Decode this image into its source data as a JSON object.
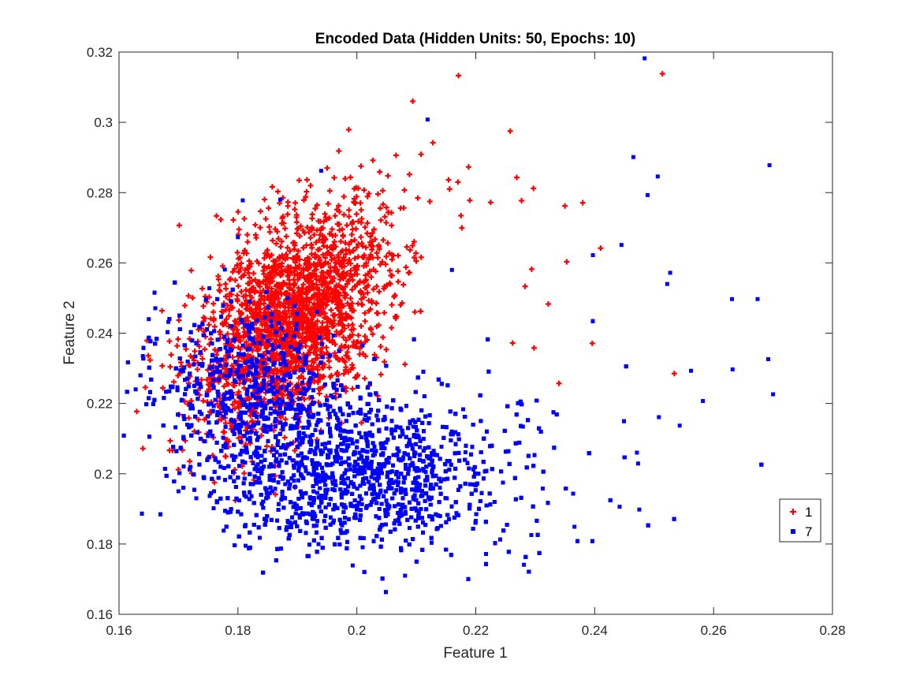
{
  "chart_data": {
    "type": "scatter",
    "title": "Encoded Data (Hidden Units: 50, Epochs: 10)",
    "xlabel": "Feature 1",
    "ylabel": "Feature 2",
    "xlim": [
      0.16,
      0.28
    ],
    "ylim": [
      0.16,
      0.32
    ],
    "xticks": [
      "0.16",
      "0.18",
      "0.2",
      "0.22",
      "0.24",
      "0.26",
      "0.28"
    ],
    "yticks": [
      "0.16",
      "0.18",
      "0.2",
      "0.22",
      "0.24",
      "0.26",
      "0.28",
      "0.3",
      "0.32"
    ],
    "grid": false,
    "legend_position": "lower-right",
    "series": [
      {
        "name": "1",
        "marker": "plus",
        "color": "#ff0000",
        "cluster_center": [
          0.189,
          0.243
        ],
        "cluster_spread": [
          0.008,
          0.014
        ],
        "point_count": 2200,
        "points": [
          [
            0.2171,
            0.3133
          ],
          [
            0.2514,
            0.3138
          ],
          [
            0.2094,
            0.306
          ],
          [
            0.2258,
            0.2975
          ],
          [
            0.2128,
            0.2942
          ],
          [
            0.2108,
            0.2909
          ],
          [
            0.2066,
            0.2906
          ],
          [
            0.2027,
            0.2892
          ],
          [
            0.2188,
            0.2873
          ],
          [
            0.195,
            0.287
          ],
          [
            0.217,
            0.283
          ],
          [
            0.1903,
            0.2835
          ],
          [
            0.2269,
            0.2843
          ],
          [
            0.2297,
            0.2812
          ],
          [
            0.2156,
            0.281
          ],
          [
            0.208,
            0.2807
          ],
          [
            0.219,
            0.2778
          ],
          [
            0.2225,
            0.2772
          ],
          [
            0.2277,
            0.2777
          ],
          [
            0.238,
            0.2771
          ],
          [
            0.235,
            0.2762
          ],
          [
            0.187,
            0.277
          ],
          [
            0.241,
            0.2642
          ],
          [
            0.2353,
            0.2603
          ],
          [
            0.2294,
            0.2582
          ],
          [
            0.2283,
            0.2533
          ],
          [
            0.2396,
            0.2371
          ],
          [
            0.2534,
            0.2285
          ],
          [
            0.234,
            0.2257
          ],
          [
            0.2298,
            0.2358
          ],
          [
            0.2262,
            0.2372
          ],
          [
            0.2322,
            0.2483
          ]
        ]
      },
      {
        "name": "7",
        "marker": "square",
        "color": "#0000ff",
        "cluster_center": [
          0.196,
          0.205
        ],
        "cluster_spread": [
          0.012,
          0.012
        ],
        "point_count": 5500,
        "points": [
          [
            0.2484,
            0.3182
          ],
          [
            0.2119,
            0.3008
          ],
          [
            0.2694,
            0.2878
          ],
          [
            0.2465,
            0.2901
          ],
          [
            0.2506,
            0.2846
          ],
          [
            0.2489,
            0.2793
          ],
          [
            0.2527,
            0.2572
          ],
          [
            0.2522,
            0.254
          ],
          [
            0.2445,
            0.2651
          ],
          [
            0.2397,
            0.2622
          ],
          [
            0.2631,
            0.2497
          ],
          [
            0.2674,
            0.2497
          ],
          [
            0.2692,
            0.2326
          ],
          [
            0.27,
            0.2226
          ],
          [
            0.2582,
            0.2207
          ],
          [
            0.2632,
            0.2297
          ],
          [
            0.2562,
            0.2293
          ],
          [
            0.2543,
            0.2137
          ],
          [
            0.2508,
            0.2161
          ],
          [
            0.2471,
            0.206
          ],
          [
            0.2473,
            0.2029
          ],
          [
            0.2475,
            0.1898
          ],
          [
            0.2442,
            0.1906
          ],
          [
            0.2366,
            0.1849
          ],
          [
            0.2281,
            0.1741
          ],
          [
            0.2081,
            0.171
          ],
          [
            0.1993,
            0.1739
          ],
          [
            0.1628,
            0.224
          ],
          [
            0.164,
            0.2335
          ],
          [
            0.165,
            0.244
          ],
          [
            0.1661,
            0.2471
          ],
          [
            0.1683,
            0.2432
          ],
          [
            0.1695,
            0.2132
          ],
          [
            0.17,
            0.195
          ],
          [
            0.173,
            0.193
          ],
          [
            0.1776,
            0.1838
          ],
          [
            0.1813,
            0.1795
          ],
          [
            0.1752,
            0.2528
          ],
          [
            0.1778,
            0.2581
          ],
          [
            0.18,
            0.2673
          ],
          [
            0.1808,
            0.2778
          ],
          [
            0.1871,
            0.278
          ],
          [
            0.194,
            0.2862
          ],
          [
            0.216,
            0.258
          ]
        ]
      }
    ]
  }
}
